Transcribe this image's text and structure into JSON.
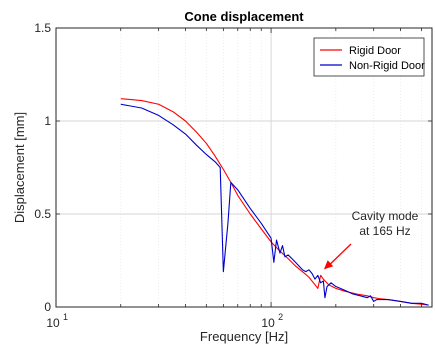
{
  "chart_data": {
    "type": "line",
    "title": "Cone displacement",
    "xlabel": "Frequency [Hz]",
    "ylabel": "Displacement [mm]",
    "x_scale": "log",
    "xlim": [
      10,
      560
    ],
    "ylim": [
      0,
      1.5
    ],
    "x_ticks": [
      {
        "value": 10,
        "base": "10",
        "exp": "1"
      },
      {
        "value": 100,
        "base": "10",
        "exp": "2"
      }
    ],
    "y_ticks": [
      {
        "value": 0,
        "label": "0"
      },
      {
        "value": 0.5,
        "label": "0.5"
      },
      {
        "value": 1,
        "label": "1"
      },
      {
        "value": 1.5,
        "label": "1.5"
      }
    ],
    "grid": true,
    "legend_position": "top-right",
    "series": [
      {
        "name": "Rigid Door",
        "color": "#ff0000",
        "points": [
          [
            20,
            1.12
          ],
          [
            25,
            1.11
          ],
          [
            30,
            1.09
          ],
          [
            35,
            1.05
          ],
          [
            40,
            1.0
          ],
          [
            45,
            0.94
          ],
          [
            50,
            0.88
          ],
          [
            55,
            0.81
          ],
          [
            60,
            0.74
          ],
          [
            65,
            0.67
          ],
          [
            70,
            0.6
          ],
          [
            80,
            0.5
          ],
          [
            90,
            0.42
          ],
          [
            100,
            0.35
          ],
          [
            110,
            0.3
          ],
          [
            120,
            0.26
          ],
          [
            130,
            0.22
          ],
          [
            140,
            0.19
          ],
          [
            150,
            0.16
          ],
          [
            160,
            0.12
          ],
          [
            165,
            0.1
          ],
          [
            170,
            0.17
          ],
          [
            175,
            0.15
          ],
          [
            185,
            0.12
          ],
          [
            200,
            0.1
          ],
          [
            220,
            0.085
          ],
          [
            250,
            0.07
          ],
          [
            280,
            0.06
          ],
          [
            300,
            0.05
          ],
          [
            320,
            0.045
          ],
          [
            350,
            0.04
          ],
          [
            400,
            0.03
          ],
          [
            450,
            0.02
          ],
          [
            500,
            0.015
          ],
          [
            540,
            0.01
          ]
        ]
      },
      {
        "name": "Non-Rigid Door",
        "color": "#0000cc",
        "points": [
          [
            20,
            1.09
          ],
          [
            25,
            1.07
          ],
          [
            30,
            1.03
          ],
          [
            35,
            0.98
          ],
          [
            40,
            0.93
          ],
          [
            45,
            0.87
          ],
          [
            50,
            0.82
          ],
          [
            55,
            0.78
          ],
          [
            58,
            0.75
          ],
          [
            60,
            0.19
          ],
          [
            63,
            0.45
          ],
          [
            65,
            0.67
          ],
          [
            70,
            0.63
          ],
          [
            80,
            0.53
          ],
          [
            90,
            0.45
          ],
          [
            100,
            0.37
          ],
          [
            103,
            0.24
          ],
          [
            106,
            0.36
          ],
          [
            110,
            0.29
          ],
          [
            113,
            0.33
          ],
          [
            116,
            0.27
          ],
          [
            120,
            0.28
          ],
          [
            125,
            0.26
          ],
          [
            130,
            0.24
          ],
          [
            135,
            0.22
          ],
          [
            140,
            0.2
          ],
          [
            145,
            0.19
          ],
          [
            150,
            0.2
          ],
          [
            155,
            0.18
          ],
          [
            160,
            0.15
          ],
          [
            165,
            0.17
          ],
          [
            170,
            0.13
          ],
          [
            175,
            0.14
          ],
          [
            178,
            0.05
          ],
          [
            182,
            0.11
          ],
          [
            190,
            0.13
          ],
          [
            200,
            0.11
          ],
          [
            210,
            0.1
          ],
          [
            220,
            0.09
          ],
          [
            240,
            0.07
          ],
          [
            260,
            0.06
          ],
          [
            280,
            0.05
          ],
          [
            290,
            0.06
          ],
          [
            300,
            0.03
          ],
          [
            310,
            0.04
          ],
          [
            350,
            0.04
          ],
          [
            400,
            0.03
          ],
          [
            450,
            0.02
          ],
          [
            500,
            0.02
          ],
          [
            540,
            0.01
          ]
        ]
      }
    ],
    "annotation": {
      "lines": [
        "Cavity mode",
        "at 165 Hz"
      ],
      "color": "#ff0000",
      "x": 165,
      "y": 0.17
    }
  }
}
